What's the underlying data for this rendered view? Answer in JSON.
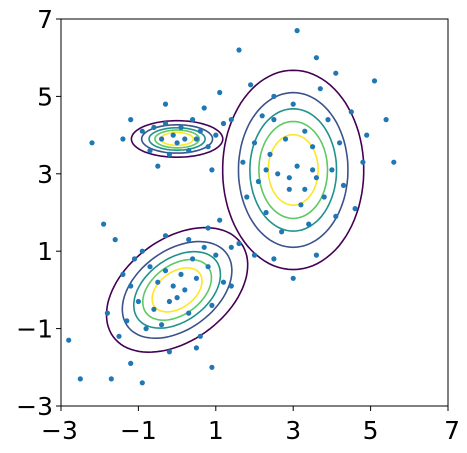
{
  "chart_data": {
    "type": "scatter",
    "title": "",
    "xlabel": "",
    "ylabel": "",
    "xlim": [
      -3,
      7
    ],
    "ylim": [
      -3,
      7
    ],
    "xticks": [
      -3,
      -1,
      1,
      3,
      5,
      7
    ],
    "yticks": [
      -3,
      -1,
      1,
      3,
      5,
      7
    ],
    "xtick_labels": [
      "−3",
      "−1",
      "1",
      "3",
      "5",
      "7"
    ],
    "ytick_labels": [
      "−3",
      "−1",
      "1",
      "3",
      "5",
      "7"
    ],
    "grid": false,
    "legend": "none",
    "point_color": "#1f77b4",
    "contour_colors": [
      "#440154",
      "#3b528b",
      "#21918c",
      "#5ec962",
      "#fde725"
    ],
    "contour_levels": [
      0.9,
      0.75,
      0.58,
      0.42,
      0.25
    ],
    "components": [
      {
        "mean": [
          0.0,
          3.9
        ],
        "sx": 0.55,
        "sy": 0.22,
        "rho": 0.0
      },
      {
        "mean": [
          3.0,
          3.1
        ],
        "sx": 0.85,
        "sy": 1.2,
        "rho": 0.0
      },
      {
        "mean": [
          0.0,
          0.0
        ],
        "sx": 0.85,
        "sy": 0.75,
        "rho": 0.4
      }
    ],
    "points": [
      [
        -2.8,
        -1.3
      ],
      [
        -2.5,
        -2.3
      ],
      [
        -2.2,
        3.8
      ],
      [
        -1.9,
        1.7
      ],
      [
        -1.8,
        -0.6
      ],
      [
        -1.7,
        -2.3
      ],
      [
        -1.6,
        1.3
      ],
      [
        -1.5,
        -1.2
      ],
      [
        -1.4,
        0.4
      ],
      [
        -1.3,
        -0.8
      ],
      [
        -1.2,
        -1.9
      ],
      [
        -1.1,
        0.8
      ],
      [
        -1.0,
        -0.3
      ],
      [
        -0.9,
        -2.4
      ],
      [
        -0.8,
        -1.0
      ],
      [
        -0.7,
        0.6
      ],
      [
        -0.6,
        -0.5
      ],
      [
        -0.5,
        0.2
      ],
      [
        -0.4,
        -0.9
      ],
      [
        -0.3,
        0.5
      ],
      [
        -0.2,
        -0.3
      ],
      [
        -0.1,
        0.1
      ],
      [
        0.0,
        -0.2
      ],
      [
        0.1,
        0.4
      ],
      [
        0.2,
        0.0
      ],
      [
        0.3,
        -0.6
      ],
      [
        0.4,
        0.8
      ],
      [
        0.5,
        0.3
      ],
      [
        0.6,
        -1.2
      ],
      [
        0.7,
        1.1
      ],
      [
        0.8,
        0.6
      ],
      [
        0.9,
        -0.4
      ],
      [
        1.0,
        0.9
      ],
      [
        1.1,
        1.8
      ],
      [
        1.2,
        0.2
      ],
      [
        1.4,
        1.1
      ],
      [
        0.5,
        -1.5
      ],
      [
        -0.2,
        -1.6
      ],
      [
        0.9,
        -2.0
      ],
      [
        1.6,
        1.2
      ],
      [
        -1.2,
        0.1
      ],
      [
        -0.9,
        1.0
      ],
      [
        -0.3,
        1.4
      ],
      [
        0.3,
        1.3
      ],
      [
        0.8,
        1.6
      ],
      [
        -1.4,
        3.9
      ],
      [
        -1.2,
        4.4
      ],
      [
        -0.9,
        4.1
      ],
      [
        -0.7,
        3.6
      ],
      [
        -0.6,
        4.2
      ],
      [
        -0.4,
        3.9
      ],
      [
        -0.3,
        4.3
      ],
      [
        -0.2,
        3.5
      ],
      [
        -0.1,
        4.0
      ],
      [
        0.0,
        3.8
      ],
      [
        0.1,
        4.2
      ],
      [
        0.2,
        3.9
      ],
      [
        0.3,
        3.6
      ],
      [
        0.4,
        4.4
      ],
      [
        0.5,
        3.9
      ],
      [
        0.6,
        4.1
      ],
      [
        0.8,
        3.7
      ],
      [
        1.0,
        4.0
      ],
      [
        1.2,
        4.3
      ],
      [
        -0.5,
        3.2
      ],
      [
        0.9,
        3.1
      ],
      [
        -0.3,
        4.8
      ],
      [
        0.7,
        4.7
      ],
      [
        1.1,
        5.1
      ],
      [
        1.6,
        6.2
      ],
      [
        1.9,
        5.3
      ],
      [
        1.4,
        4.4
      ],
      [
        1.7,
        3.3
      ],
      [
        1.8,
        2.4
      ],
      [
        2.0,
        3.8
      ],
      [
        2.1,
        2.8
      ],
      [
        2.2,
        4.5
      ],
      [
        2.3,
        2.0
      ],
      [
        2.4,
        3.5
      ],
      [
        2.5,
        5.0
      ],
      [
        2.6,
        3.0
      ],
      [
        2.7,
        1.5
      ],
      [
        2.8,
        3.9
      ],
      [
        2.9,
        2.6
      ],
      [
        3.0,
        4.8
      ],
      [
        3.1,
        3.2
      ],
      [
        3.2,
        2.2
      ],
      [
        3.3,
        4.1
      ],
      [
        3.4,
        1.7
      ],
      [
        3.5,
        3.7
      ],
      [
        3.6,
        2.9
      ],
      [
        3.7,
        5.2
      ],
      [
        3.8,
        2.4
      ],
      [
        3.9,
        4.4
      ],
      [
        4.0,
        3.1
      ],
      [
        4.1,
        1.9
      ],
      [
        4.2,
        3.8
      ],
      [
        4.3,
        2.7
      ],
      [
        4.5,
        4.6
      ],
      [
        4.6,
        2.1
      ],
      [
        4.8,
        3.3
      ],
      [
        3.1,
        6.7
      ],
      [
        3.6,
        6.0
      ],
      [
        4.1,
        5.6
      ],
      [
        4.9,
        4.0
      ],
      [
        5.1,
        5.4
      ],
      [
        5.4,
        4.4
      ],
      [
        5.6,
        3.3
      ],
      [
        3.0,
        0.3
      ],
      [
        3.6,
        0.9
      ],
      [
        2.5,
        0.8
      ],
      [
        2.0,
        0.9
      ],
      [
        1.4,
        0.1
      ],
      [
        2.5,
        4.4
      ],
      [
        2.3,
        3.1
      ],
      [
        3.5,
        3.1
      ],
      [
        2.9,
        2.9
      ],
      [
        3.3,
        2.6
      ]
    ]
  }
}
